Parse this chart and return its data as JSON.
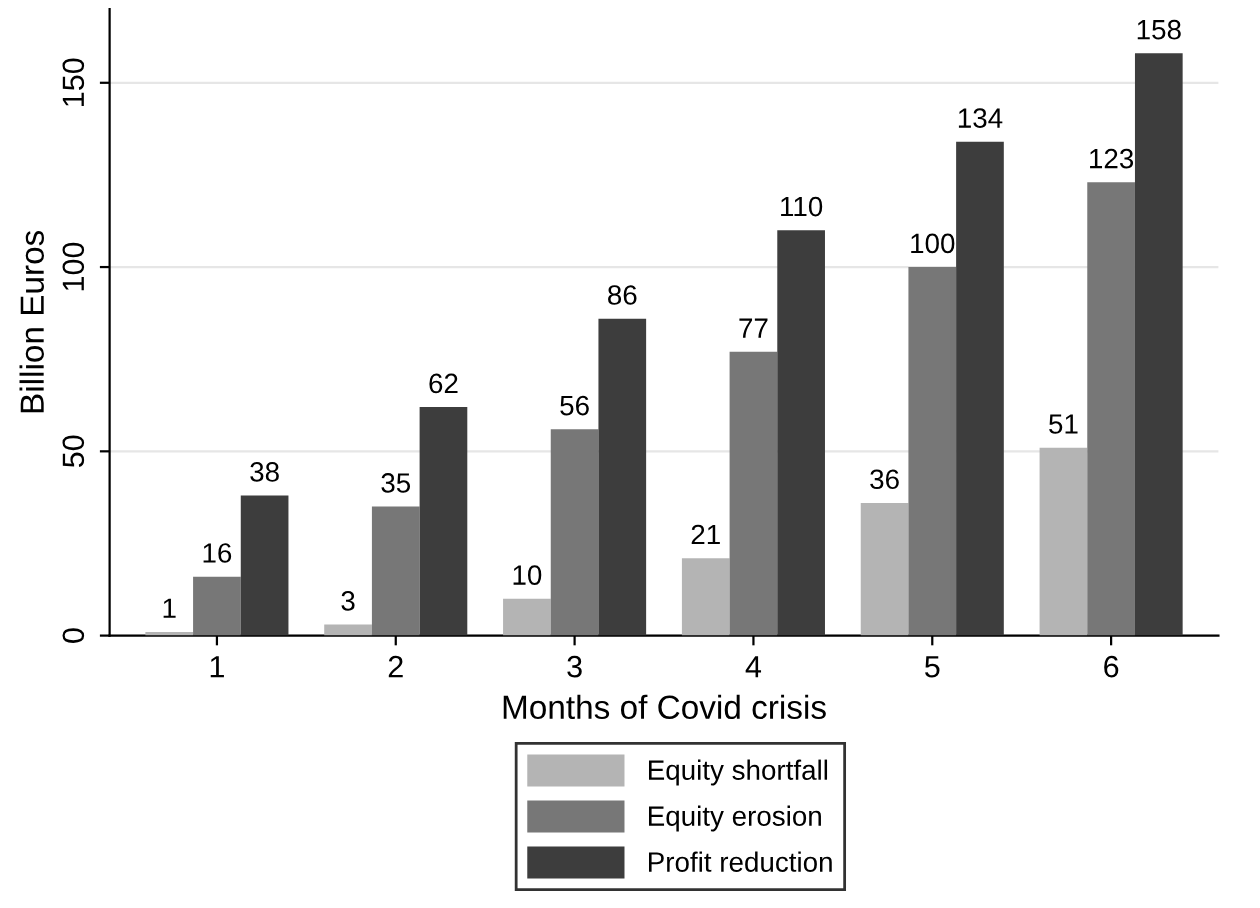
{
  "chart_data": {
    "type": "bar",
    "xlabel": "Months of Covid crisis",
    "ylabel": "Billion Euros",
    "categories": [
      "1",
      "2",
      "3",
      "4",
      "5",
      "6"
    ],
    "series": [
      {
        "name": "Equity shortfall",
        "color": "#b4b4b4",
        "values": [
          1,
          3,
          10,
          21,
          36,
          51
        ]
      },
      {
        "name": "Equity erosion",
        "color": "#777777",
        "values": [
          16,
          35,
          56,
          77,
          100,
          123
        ]
      },
      {
        "name": "Profit reduction",
        "color": "#3d3d3d",
        "values": [
          38,
          62,
          86,
          110,
          134,
          158
        ]
      }
    ],
    "ylim": [
      0,
      170
    ],
    "yticks": [
      0,
      50,
      100,
      150
    ],
    "grid": "y",
    "legend": "bottom",
    "data_labels": true
  }
}
